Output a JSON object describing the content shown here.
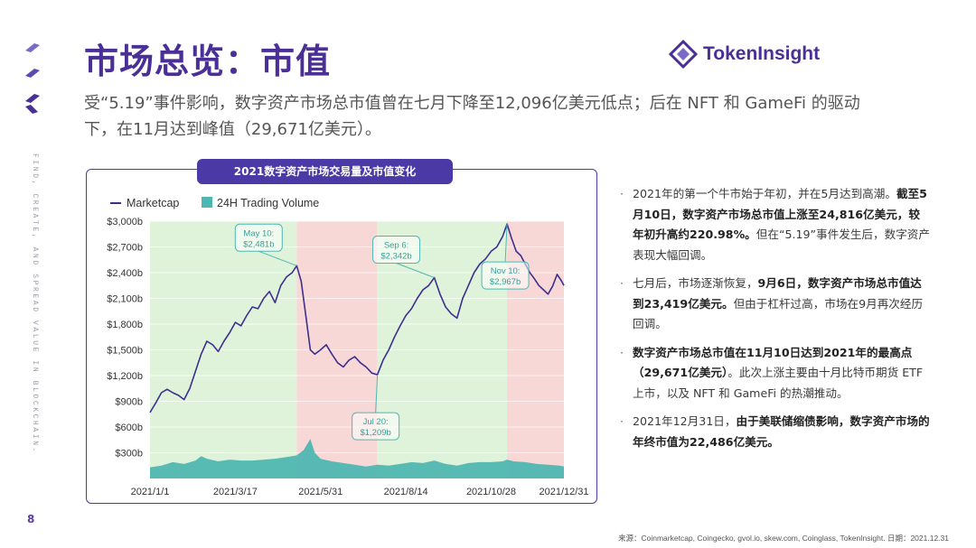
{
  "page_number": "8",
  "title": "市场总览：市值",
  "brand": {
    "name": "TokenInsight"
  },
  "side_text": "FIND, CREATE, AND SPREAD VALUE IN BLOCKCHAIN.",
  "subtitle": "受“5.19”事件影响，数字资产市场总市值曾在七月下降至12,096亿美元低点；后在 NFT 和 GameFi 的驱动下，在11月达到峰值（29,671亿美元）。",
  "chart_title": "2021数字资产市场交易量及市值变化",
  "chart_data": {
    "type": "line",
    "legend": [
      "Marketcap",
      "24H Trading Volume"
    ],
    "x_tick_labels": [
      "2021/1/1",
      "2021/3/17",
      "2021/5/31",
      "2021/8/14",
      "2021/10/28",
      "2021/12/31"
    ],
    "x_tick_days": [
      0,
      75,
      150,
      225,
      300,
      364
    ],
    "y_tick_labels": [
      "$300b",
      "$600b",
      "$900b",
      "$1,200b",
      "$1,500b",
      "$1,800b",
      "$2,100b",
      "$2,400b",
      "$2,700b",
      "$3,000b"
    ],
    "y_tick_values": [
      300,
      600,
      900,
      1200,
      1500,
      1800,
      2100,
      2400,
      2700,
      3000
    ],
    "ylim": [
      0,
      3000
    ],
    "xlim": [
      0,
      364
    ],
    "regions": [
      {
        "start": 0,
        "end": 129,
        "phase": "bull"
      },
      {
        "start": 129,
        "end": 200,
        "phase": "bear"
      },
      {
        "start": 200,
        "end": 314,
        "phase": "bull"
      },
      {
        "start": 314,
        "end": 364,
        "phase": "bear"
      }
    ],
    "marketcap": {
      "name": "Marketcap",
      "color": "#3d2f8f",
      "points": [
        [
          0,
          770
        ],
        [
          5,
          880
        ],
        [
          10,
          1000
        ],
        [
          15,
          1040
        ],
        [
          20,
          1000
        ],
        [
          25,
          970
        ],
        [
          30,
          920
        ],
        [
          35,
          1050
        ],
        [
          40,
          1250
        ],
        [
          45,
          1450
        ],
        [
          50,
          1600
        ],
        [
          55,
          1560
        ],
        [
          60,
          1480
        ],
        [
          65,
          1600
        ],
        [
          70,
          1700
        ],
        [
          75,
          1820
        ],
        [
          80,
          1780
        ],
        [
          85,
          1900
        ],
        [
          90,
          2000
        ],
        [
          95,
          1980
        ],
        [
          100,
          2100
        ],
        [
          105,
          2180
        ],
        [
          110,
          2050
        ],
        [
          115,
          2250
        ],
        [
          120,
          2350
        ],
        [
          125,
          2400
        ],
        [
          129,
          2481
        ],
        [
          133,
          2300
        ],
        [
          137,
          1900
        ],
        [
          141,
          1500
        ],
        [
          145,
          1450
        ],
        [
          150,
          1500
        ],
        [
          155,
          1560
        ],
        [
          160,
          1450
        ],
        [
          165,
          1350
        ],
        [
          170,
          1300
        ],
        [
          175,
          1380
        ],
        [
          180,
          1420
        ],
        [
          185,
          1350
        ],
        [
          190,
          1300
        ],
        [
          195,
          1230
        ],
        [
          200,
          1209
        ],
        [
          205,
          1380
        ],
        [
          210,
          1500
        ],
        [
          215,
          1650
        ],
        [
          220,
          1780
        ],
        [
          225,
          1900
        ],
        [
          230,
          1980
        ],
        [
          235,
          2100
        ],
        [
          240,
          2200
        ],
        [
          245,
          2250
        ],
        [
          250,
          2342
        ],
        [
          255,
          2150
        ],
        [
          260,
          2000
        ],
        [
          265,
          1920
        ],
        [
          270,
          1870
        ],
        [
          275,
          2100
        ],
        [
          280,
          2250
        ],
        [
          285,
          2400
        ],
        [
          290,
          2500
        ],
        [
          295,
          2560
        ],
        [
          300,
          2650
        ],
        [
          305,
          2700
        ],
        [
          310,
          2820
        ],
        [
          314,
          2967
        ],
        [
          318,
          2800
        ],
        [
          322,
          2650
        ],
        [
          326,
          2600
        ],
        [
          330,
          2500
        ],
        [
          334,
          2400
        ],
        [
          338,
          2330
        ],
        [
          342,
          2250
        ],
        [
          346,
          2200
        ],
        [
          350,
          2150
        ],
        [
          354,
          2240
        ],
        [
          358,
          2380
        ],
        [
          362,
          2300
        ],
        [
          364,
          2249
        ]
      ]
    },
    "volume": {
      "name": "24H Trading Volume",
      "color": "#4fb7b2",
      "points": [
        [
          0,
          130
        ],
        [
          10,
          150
        ],
        [
          20,
          190
        ],
        [
          30,
          170
        ],
        [
          40,
          210
        ],
        [
          45,
          260
        ],
        [
          50,
          230
        ],
        [
          60,
          200
        ],
        [
          70,
          220
        ],
        [
          80,
          210
        ],
        [
          90,
          210
        ],
        [
          100,
          220
        ],
        [
          110,
          230
        ],
        [
          120,
          250
        ],
        [
          129,
          270
        ],
        [
          135,
          330
        ],
        [
          141,
          460
        ],
        [
          145,
          300
        ],
        [
          150,
          230
        ],
        [
          160,
          200
        ],
        [
          170,
          180
        ],
        [
          180,
          160
        ],
        [
          190,
          140
        ],
        [
          200,
          160
        ],
        [
          210,
          150
        ],
        [
          220,
          170
        ],
        [
          230,
          190
        ],
        [
          240,
          180
        ],
        [
          250,
          210
        ],
        [
          260,
          170
        ],
        [
          270,
          150
        ],
        [
          280,
          180
        ],
        [
          290,
          190
        ],
        [
          300,
          190
        ],
        [
          310,
          200
        ],
        [
          314,
          220
        ],
        [
          320,
          200
        ],
        [
          330,
          190
        ],
        [
          340,
          170
        ],
        [
          350,
          160
        ],
        [
          360,
          150
        ],
        [
          364,
          140
        ]
      ]
    },
    "annotations": [
      {
        "label": "May 10:",
        "value": "$2,481b",
        "day": 129,
        "mc": 2481,
        "side": "above"
      },
      {
        "label": "Jul 20:",
        "value": "$1,209b",
        "day": 200,
        "mc": 1209,
        "side": "below"
      },
      {
        "label": "Sep 6:",
        "value": "$2,342b",
        "day": 250,
        "mc": 2342,
        "side": "above"
      },
      {
        "label": "Nov 10:",
        "value": "$2,967b",
        "day": 314,
        "mc": 2967,
        "side": "below"
      }
    ]
  },
  "bullets": [
    {
      "parts": [
        {
          "t": "2021年的第一个牛市始于年初，并在5月达到高潮。",
          "b": false
        },
        {
          "t": "截至5月10日，数字资产市场总市值上涨至24,816亿美元，较年初升高约220.98%。",
          "b": true
        },
        {
          "t": "但在“5.19”事件发生后，数字资产表现大幅回调。",
          "b": false
        }
      ]
    },
    {
      "parts": [
        {
          "t": "七月后，市场逐渐恢复，",
          "b": false
        },
        {
          "t": "9月6日，数字资产市场总市值达到23,419亿美元。",
          "b": true
        },
        {
          "t": "但由于杠杆过高，市场在9月再次经历回调。",
          "b": false
        }
      ]
    },
    {
      "parts": [
        {
          "t": "数字资产市场总市值在11月10日达到2021年的最高点（29,671亿美元）",
          "b": true
        },
        {
          "t": "。此次上涨主要由十月比特币期货 ETF 上市，以及 NFT 和 GameFi 的热潮推动。",
          "b": false
        }
      ]
    },
    {
      "parts": [
        {
          "t": "2021年12月31日，",
          "b": false
        },
        {
          "t": "由于美联储缩债影响，数字资产市场的年终市值为22,486亿美元。",
          "b": true
        }
      ]
    }
  ],
  "source": "来源：Coinmarketcap, Coingecko, gvol.io, skew.com, Coinglass, TokenInsight. 日期：2021.12.31",
  "colors": {
    "brand": "#4a2f97",
    "marketcap": "#3d2f8f",
    "volume": "#4fb7b2",
    "bull": "#dff3da",
    "bear": "#f7d8d6"
  }
}
